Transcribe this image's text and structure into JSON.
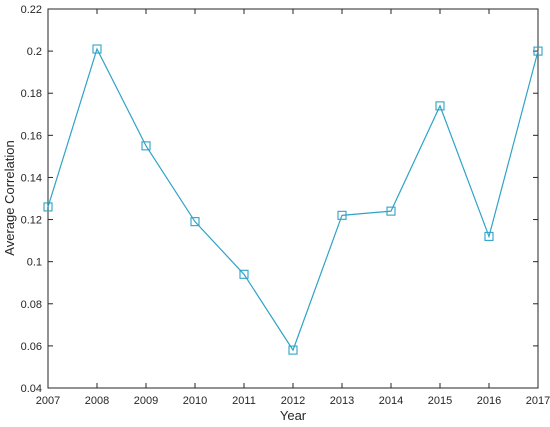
{
  "chart_data": {
    "type": "line",
    "title": "",
    "xlabel": "Year",
    "ylabel": "Average Correlation",
    "x": [
      2007,
      2008,
      2009,
      2010,
      2011,
      2012,
      2013,
      2014,
      2015,
      2016,
      2017
    ],
    "series": [
      {
        "values": [
          0.126,
          0.201,
          0.155,
          0.119,
          0.094,
          0.058,
          0.122,
          0.124,
          0.174,
          0.112,
          0.2
        ],
        "color": "#2fa3c6",
        "marker": "square"
      }
    ],
    "xlim": [
      2007,
      2017
    ],
    "ylim": [
      0.04,
      0.22
    ],
    "xticks": [
      "2007",
      "2008",
      "2009",
      "2010",
      "2011",
      "2012",
      "2013",
      "2014",
      "2015",
      "2016",
      "2017"
    ],
    "yticks": [
      "0.04",
      "0.06",
      "0.08",
      "0.1",
      "0.12",
      "0.14",
      "0.16",
      "0.18",
      "0.2",
      "0.22"
    ],
    "grid": false,
    "legend": "none"
  }
}
